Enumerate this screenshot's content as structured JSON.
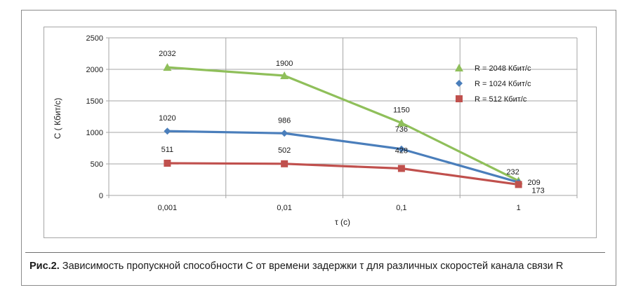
{
  "caption": {
    "label": "Рис.2.",
    "text": " Зависимость пропускной способности C от времени задержки τ для различных скоростей канала связи R"
  },
  "chart_data": {
    "type": "line",
    "title": "",
    "xlabel": "τ (с)",
    "ylabel": "C ( Кбит/с)",
    "categories": [
      "0,001",
      "0,01",
      "0,1",
      "1"
    ],
    "ylim": [
      0,
      2500
    ],
    "yticks": [
      0,
      500,
      1000,
      1500,
      2000,
      2500
    ],
    "grid": true,
    "legend_position": "top-right",
    "series": [
      {
        "name": "R = 2048 Кбит/с",
        "values": [
          2032,
          1900,
          1150,
          232
        ],
        "color": "#8fbf5a",
        "marker": "triangle"
      },
      {
        "name": "R = 1024 Кбит/с",
        "values": [
          1020,
          986,
          736,
          209
        ],
        "color": "#4a7ebb",
        "marker": "diamond"
      },
      {
        "name": "R = 512 Кбит/с",
        "values": [
          511,
          502,
          428,
          173
        ],
        "color": "#c0504d",
        "marker": "square"
      }
    ]
  }
}
